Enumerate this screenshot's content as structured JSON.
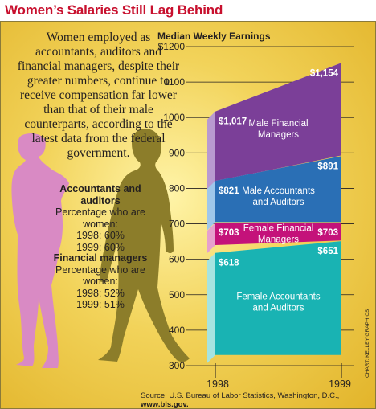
{
  "title": "Women’s Salaries Still Lag Behind",
  "intro_text": "Women employed as accountants, auditors and financial managers, despite their greater numbers, continue to receive compensation far lower than that of their male counterparts, according to the latest data from the federal government.",
  "stats": [
    {
      "heading": "Accountants and auditors",
      "label": "Percentage who are women:",
      "line1": "1998: 60%",
      "line2": "1999: 60%"
    },
    {
      "heading": "Financial managers",
      "label": "Percentage who are women:",
      "line1": "1998: 52%",
      "line2": "1999: 51%"
    }
  ],
  "source": "Source: U.S. Bureau of Labor Statistics, Washington, D.C., ",
  "source_url": "www.bls.gov.",
  "credit": "CHART: KELLEY GRAPHICS",
  "colors": {
    "title": "#c8102e",
    "male_financial": "#7b3f98",
    "male_accountants": "#2a6fb5",
    "female_financial": "#c4127a",
    "female_accountants": "#19b3b3",
    "woman_silhouette": "#d98ac4",
    "man_silhouette": "#8c7d2a"
  },
  "chart_data": {
    "type": "area",
    "title": "Median Weekly Earnings",
    "x": [
      "1998",
      "1999"
    ],
    "ylim": [
      300,
      1200
    ],
    "y_ticks": [
      "$1200",
      "1100",
      "1000",
      "900",
      "800",
      "700",
      "600",
      "500",
      "400",
      "300"
    ],
    "series": [
      {
        "name": "Male Financial Managers",
        "values": [
          1017,
          1154
        ],
        "labels": [
          "$1,017",
          "$1,154"
        ],
        "color": "#7b3f98"
      },
      {
        "name": "Male Accountants and Auditors",
        "values": [
          821,
          891
        ],
        "labels": [
          "$821",
          "$891"
        ],
        "color": "#2a6fb5"
      },
      {
        "name": "Female Financial Managers",
        "values": [
          703,
          703
        ],
        "labels": [
          "$703",
          "$703"
        ],
        "color": "#c4127a"
      },
      {
        "name": "Female Accountants and Auditors",
        "values": [
          618,
          651
        ],
        "labels": [
          "$618",
          "$651"
        ],
        "color": "#19b3b3"
      }
    ]
  }
}
